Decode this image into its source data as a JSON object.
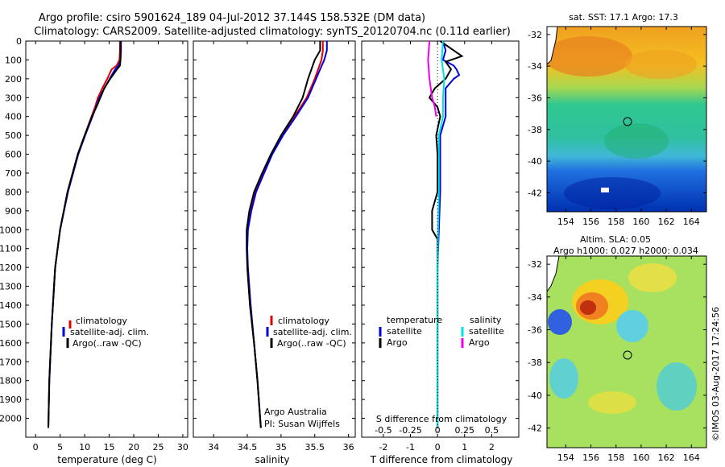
{
  "header": {
    "title_line1": "Argo profile: csiro 5901624_189 04-Jul-2012 37.144S 158.532E (DM data)",
    "title_line2": "Climatology: CARS2009. Satellite-adjusted climatology: synTS_20120704.nc (0.11d earlier)"
  },
  "colors": {
    "climatology": "#e00000",
    "satellite": "#0000dd",
    "argo": "#000000",
    "s_satellite": "#00e0e0",
    "s_argo": "#ee00ee"
  },
  "chart_data": [
    {
      "id": "temperature",
      "type": "line",
      "xlabel": "temperature (deg C)",
      "xlim": [
        -2,
        31
      ],
      "xticks": [
        0,
        5,
        10,
        15,
        20,
        25,
        30
      ],
      "ylim": [
        2100,
        0
      ],
      "yticks": [
        0,
        100,
        200,
        300,
        400,
        500,
        600,
        700,
        800,
        900,
        1000,
        1100,
        1200,
        1300,
        1400,
        1500,
        1600,
        1700,
        1800,
        1900,
        2000
      ],
      "legend": [
        "climatology",
        "satellite-adj. clim.",
        "Argo(..raw -QC)"
      ],
      "series": [
        {
          "name": "climatology",
          "color": "#e00000",
          "depth": [
            0,
            50,
            100,
            130,
            150,
            200,
            250,
            300,
            350,
            400,
            500,
            600,
            800,
            1000,
            1200,
            1500,
            1800,
            2050
          ],
          "values": [
            17.2,
            17.2,
            17.1,
            16.5,
            15.5,
            14.6,
            13.6,
            12.7,
            12.1,
            11.4,
            10.0,
            8.6,
            6.5,
            5.0,
            4.0,
            3.3,
            2.8,
            2.6
          ]
        },
        {
          "name": "satellite-adj. clim.",
          "color": "#0000dd",
          "depth": [
            0,
            50,
            100,
            130,
            150,
            200,
            250,
            300,
            350,
            400,
            500,
            600,
            800,
            1000,
            1200,
            1500,
            1800,
            2050
          ],
          "values": [
            17.4,
            17.4,
            17.3,
            16.9,
            16.2,
            15.1,
            14.0,
            13.0,
            12.3,
            11.6,
            10.1,
            8.7,
            6.6,
            5.0,
            4.0,
            3.3,
            2.8,
            2.6
          ]
        },
        {
          "name": "Argo(..raw -QC)",
          "color": "#000000",
          "depth": [
            0,
            50,
            100,
            130,
            150,
            200,
            250,
            300,
            350,
            400,
            500,
            600,
            800,
            1000,
            1200,
            1500,
            1800,
            2050
          ],
          "values": [
            17.3,
            17.3,
            17.3,
            17.2,
            16.6,
            15.2,
            14.0,
            13.2,
            12.4,
            11.5,
            10.0,
            8.6,
            6.5,
            5.0,
            4.0,
            3.3,
            2.8,
            2.6
          ]
        }
      ]
    },
    {
      "id": "salinity",
      "type": "line",
      "xlabel": "salinity",
      "xlim": [
        33.7,
        36.1
      ],
      "xticks": [
        34,
        34.5,
        35,
        35.5,
        36
      ],
      "ylim": [
        2100,
        0
      ],
      "legend": [
        "climatology",
        "satellite-adj. clim.",
        "Argo(..raw -QC)"
      ],
      "note_line1": "Argo Australia",
      "note_line2": "PI: Susan Wijffels",
      "series": [
        {
          "name": "climatology",
          "color": "#e00000",
          "depth": [
            0,
            50,
            100,
            150,
            200,
            300,
            400,
            500,
            600,
            700,
            800,
            900,
            1000,
            1100,
            1200,
            1400,
            1600,
            1800,
            2050
          ],
          "values": [
            35.62,
            35.62,
            35.6,
            35.55,
            35.5,
            35.38,
            35.2,
            35.02,
            34.86,
            34.74,
            34.62,
            34.55,
            34.5,
            34.5,
            34.5,
            34.54,
            34.6,
            34.65,
            34.7
          ]
        },
        {
          "name": "satellite-adj. clim.",
          "color": "#0000dd",
          "depth": [
            0,
            50,
            100,
            150,
            200,
            300,
            400,
            500,
            600,
            700,
            800,
            900,
            1000,
            1100,
            1200,
            1400,
            1600,
            1800,
            2050
          ],
          "values": [
            35.68,
            35.68,
            35.64,
            35.58,
            35.52,
            35.4,
            35.22,
            35.03,
            34.87,
            34.75,
            34.63,
            34.56,
            34.51,
            34.5,
            34.51,
            34.55,
            34.6,
            34.65,
            34.7
          ]
        },
        {
          "name": "Argo(..raw -QC)",
          "color": "#000000",
          "depth": [
            0,
            50,
            100,
            150,
            200,
            300,
            400,
            500,
            600,
            700,
            800,
            900,
            1000,
            1100,
            1200,
            1400,
            1600,
            1800,
            2050
          ],
          "values": [
            35.58,
            35.58,
            35.5,
            35.45,
            35.4,
            35.32,
            35.18,
            35.0,
            34.85,
            34.72,
            34.6,
            34.53,
            34.49,
            34.49,
            34.5,
            34.54,
            34.6,
            34.65,
            34.7
          ]
        }
      ]
    },
    {
      "id": "difference",
      "type": "line",
      "xlabel": "T difference from climatology",
      "xlim": [
        -2.8,
        3.0
      ],
      "xticks": [
        -2,
        -1,
        0,
        1,
        2
      ],
      "top_label": "S difference from climatology",
      "top_ticks": [
        "-0.5",
        "-0.25",
        "0",
        "0.25",
        "0.5"
      ],
      "ylim": [
        2100,
        0
      ],
      "legend_t_title": "temperature",
      "legend_s_title": "salinity",
      "legend_t": [
        "satellite",
        "Argo"
      ],
      "legend_s": [
        "satellite",
        "Argo"
      ],
      "series": [
        {
          "name": "T satellite",
          "color": "#0000dd",
          "depth": [
            0,
            50,
            100,
            130,
            150,
            180,
            200,
            250,
            300,
            400,
            500,
            600,
            800,
            1000,
            1200,
            1500,
            2050
          ],
          "values": [
            0.2,
            0.3,
            0.2,
            0.6,
            0.7,
            0.8,
            0.6,
            0.3,
            0.3,
            0.3,
            0.1,
            0.1,
            0.1,
            0.05,
            0.0,
            0.0,
            0.0
          ]
        },
        {
          "name": "T Argo",
          "color": "#000000",
          "depth": [
            0,
            50,
            80,
            110,
            150,
            200,
            250,
            300,
            350,
            400,
            500,
            600,
            800,
            900,
            1000,
            1050,
            1100,
            1200,
            1500,
            2050
          ],
          "values": [
            0.1,
            0.6,
            0.9,
            0.3,
            0.5,
            0.3,
            -0.1,
            -0.3,
            0.0,
            0.1,
            -0.05,
            0.0,
            0.0,
            -0.2,
            -0.2,
            0.0,
            0.0,
            0.0,
            0.0,
            0.0
          ]
        },
        {
          "name": "S satellite",
          "color": "#00e0e0",
          "depth": [
            0,
            100,
            200,
            300,
            400,
            500,
            600,
            800,
            1000,
            1200,
            1500,
            2050
          ],
          "values": [
            0.2,
            0.15,
            0.25,
            0.2,
            0.2,
            0.05,
            0.05,
            0.05,
            0.02,
            0.0,
            0.0,
            0.0
          ]
        },
        {
          "name": "S Argo",
          "color": "#ee00ee",
          "depth": [
            0,
            100,
            200,
            300,
            350,
            400
          ],
          "values": [
            -0.3,
            -0.35,
            -0.3,
            -0.2,
            -0.1,
            -0.05
          ]
        }
      ]
    }
  ],
  "maps": {
    "sst": {
      "title": "sat. SST: 17.1 Argo: 17.3",
      "lat_ticks": [
        "-32",
        "-34",
        "-36",
        "-38",
        "-40",
        "-42"
      ],
      "lon_ticks": [
        "154",
        "156",
        "158",
        "160",
        "162",
        "164"
      ]
    },
    "sla": {
      "title_line1": "Altim. SLA: 0.05",
      "title_line2": "Argo h1000: 0.027 h2000: 0.034",
      "lat_ticks": [
        "-32",
        "-34",
        "-36",
        "-38",
        "-40",
        "-42"
      ],
      "lon_ticks": [
        "154",
        "156",
        "158",
        "160",
        "162",
        "164"
      ]
    }
  },
  "credit": "©IMOS 03-Aug-2017 17:24:56"
}
